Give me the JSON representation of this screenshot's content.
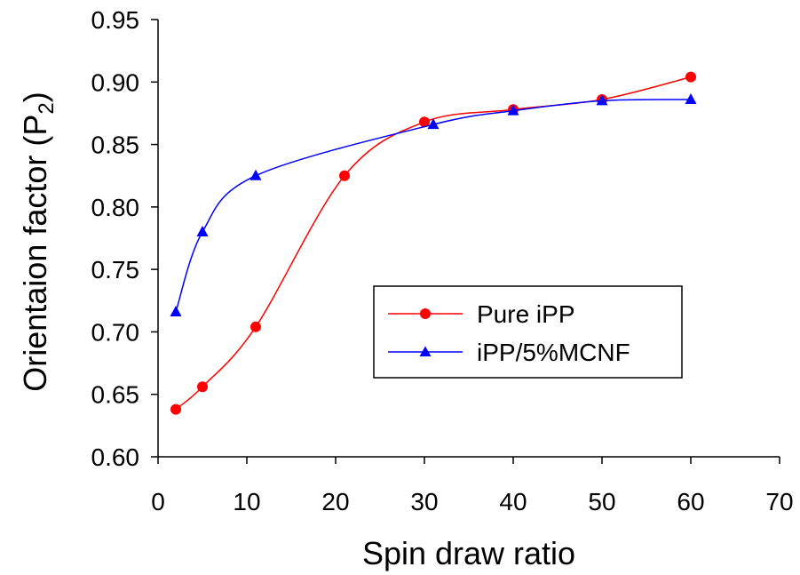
{
  "chart_data": {
    "type": "line",
    "xlabel": "Spin draw ratio",
    "ylabel": "Orientaion factor (P",
    "ylabel_subscript": "2",
    "ylabel_close": ")",
    "xlim": [
      0,
      70
    ],
    "ylim": [
      0.6,
      0.95
    ],
    "xticks": [
      0,
      10,
      20,
      30,
      40,
      50,
      60,
      70
    ],
    "xtick_labels": [
      "0",
      "10",
      "20",
      "30",
      "40",
      "50",
      "60",
      "70"
    ],
    "yticks": [
      0.6,
      0.65,
      0.7,
      0.75,
      0.8,
      0.85,
      0.9,
      0.95
    ],
    "ytick_labels": [
      "0.60",
      "0.65",
      "0.70",
      "0.75",
      "0.80",
      "0.85",
      "0.90",
      "0.95"
    ],
    "grid": false,
    "legend_position": "center-right",
    "series": [
      {
        "name": "Pure iPP",
        "color": "#ff0000",
        "marker": "circle",
        "x": [
          2,
          5,
          11,
          21,
          30,
          40,
          50,
          60
        ],
        "y": [
          0.638,
          0.656,
          0.704,
          0.825,
          0.868,
          0.878,
          0.886,
          0.904
        ]
      },
      {
        "name": "iPP/5%MCNF",
        "color": "#0000ff",
        "marker": "triangle",
        "x": [
          2,
          5,
          11,
          31,
          40,
          50,
          60
        ],
        "y": [
          0.716,
          0.78,
          0.825,
          0.866,
          0.877,
          0.885,
          0.886
        ]
      }
    ]
  }
}
